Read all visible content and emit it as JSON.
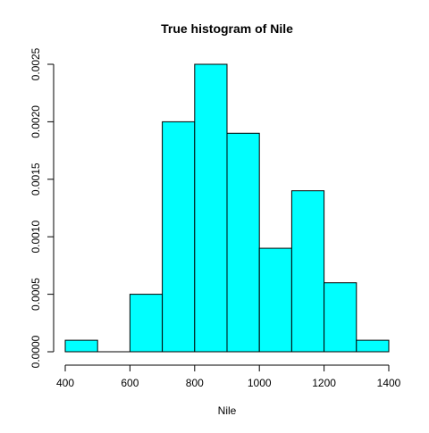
{
  "chart_data": {
    "type": "bar",
    "title": "True histogram of Nile",
    "xlabel": "Nile",
    "ylabel": "",
    "bins": [
      {
        "from": 400,
        "to": 500,
        "density": 0.0001
      },
      {
        "from": 500,
        "to": 600,
        "density": 0.0
      },
      {
        "from": 600,
        "to": 700,
        "density": 0.0005
      },
      {
        "from": 700,
        "to": 800,
        "density": 0.002
      },
      {
        "from": 800,
        "to": 900,
        "density": 0.0025
      },
      {
        "from": 900,
        "to": 1000,
        "density": 0.0019
      },
      {
        "from": 1000,
        "to": 1100,
        "density": 0.0009
      },
      {
        "from": 1100,
        "to": 1200,
        "density": 0.0014
      },
      {
        "from": 1200,
        "to": 1300,
        "density": 0.0006
      },
      {
        "from": 1300,
        "to": 1400,
        "density": 0.0001
      }
    ],
    "xlim": [
      400,
      1400
    ],
    "ylim": [
      0,
      0.0025
    ],
    "x_ticks": [
      {
        "value": 400,
        "label": "400"
      },
      {
        "value": 600,
        "label": "600"
      },
      {
        "value": 800,
        "label": "800"
      },
      {
        "value": 1000,
        "label": "1000"
      },
      {
        "value": 1200,
        "label": "1200"
      },
      {
        "value": 1400,
        "label": "1400"
      }
    ],
    "y_ticks": [
      {
        "value": 0.0,
        "label": "0.0000"
      },
      {
        "value": 0.0005,
        "label": "0.0005"
      },
      {
        "value": 0.001,
        "label": "0.0010"
      },
      {
        "value": 0.0015,
        "label": "0.0015"
      },
      {
        "value": 0.002,
        "label": "0.0020"
      },
      {
        "value": 0.0025,
        "label": "0.0025"
      }
    ],
    "bar_fill": "#00FFFF",
    "bar_stroke": "#000000",
    "grid": false,
    "legend": "none"
  }
}
